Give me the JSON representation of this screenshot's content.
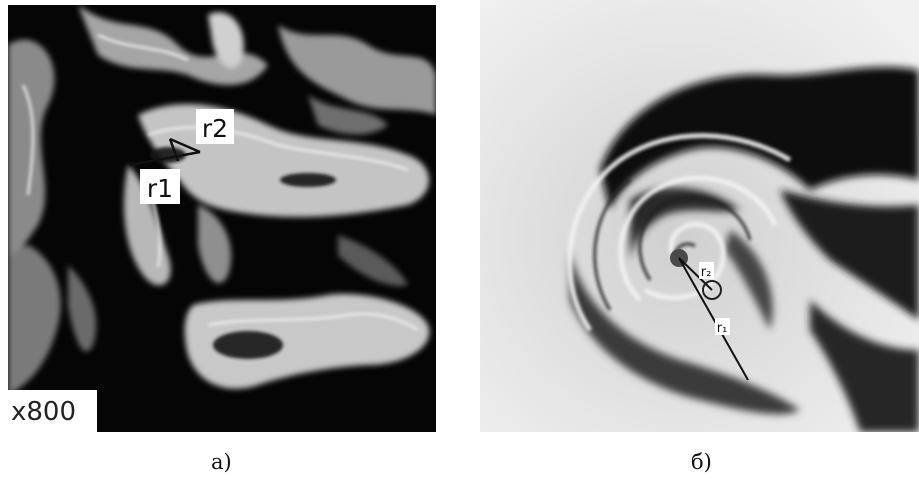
{
  "panels": {
    "a": {
      "caption": "а)",
      "magnification": "x800",
      "marker_1": "r1",
      "marker_2": "r2"
    },
    "b": {
      "caption": "б)",
      "marker_1": "r₁",
      "marker_2": "r₂"
    }
  },
  "colors": {
    "background": "#ffffff",
    "micrograph_dark": "#050505",
    "micrograph_light": "#cfcfcf",
    "cloud_light": "#e6e6e6",
    "cloud_dark": "#0a0a0a"
  }
}
